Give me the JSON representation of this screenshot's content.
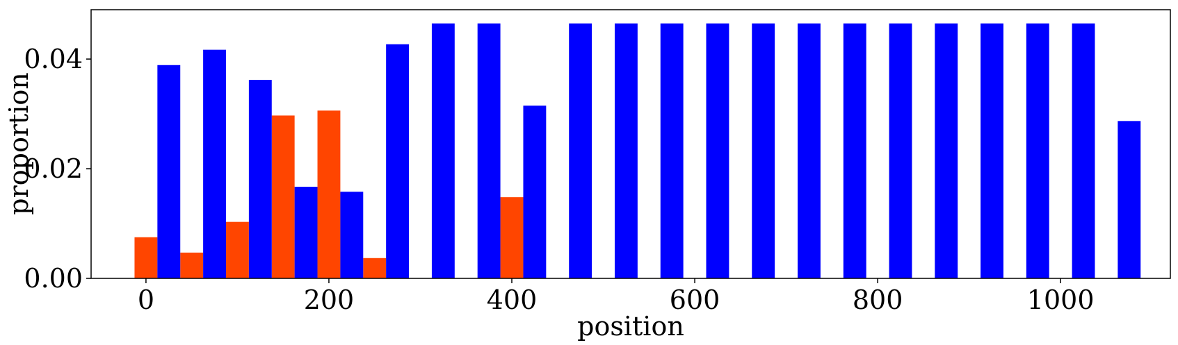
{
  "chart_data": {
    "type": "bar",
    "xlabel": "position",
    "ylabel": "proportion",
    "xlim": [
      -60,
      1120
    ],
    "ylim": [
      0,
      0.049
    ],
    "x_ticks": [
      0,
      200,
      400,
      600,
      800,
      1000
    ],
    "x_tick_labels": [
      "0",
      "200",
      "400",
      "600",
      "800",
      "1000"
    ],
    "y_ticks": [
      0,
      0.02,
      0.04
    ],
    "y_tick_labels": [
      "0.00",
      "0.02",
      "0.04"
    ],
    "bar_width": 25,
    "grid": false,
    "legend": "none",
    "series": [
      {
        "color": "#ff4500",
        "x": [
          0,
          50,
          100,
          150,
          200,
          250,
          400
        ],
        "values": [
          0.0075,
          0.0047,
          0.0103,
          0.0297,
          0.0306,
          0.0037,
          0.0148
        ]
      },
      {
        "color": "#0000ff",
        "x": [
          25,
          75,
          125,
          175,
          225,
          275,
          325,
          375,
          425,
          475,
          525,
          575,
          625,
          675,
          725,
          775,
          825,
          875,
          925,
          975,
          1025,
          1075
        ],
        "values": [
          0.0389,
          0.0417,
          0.0362,
          0.0167,
          0.0158,
          0.0427,
          0.0465,
          0.0465,
          0.0315,
          0.0465,
          0.0465,
          0.0465,
          0.0465,
          0.0465,
          0.0465,
          0.0465,
          0.0465,
          0.0465,
          0.0465,
          0.0465,
          0.0465,
          0.0287
        ]
      }
    ]
  }
}
